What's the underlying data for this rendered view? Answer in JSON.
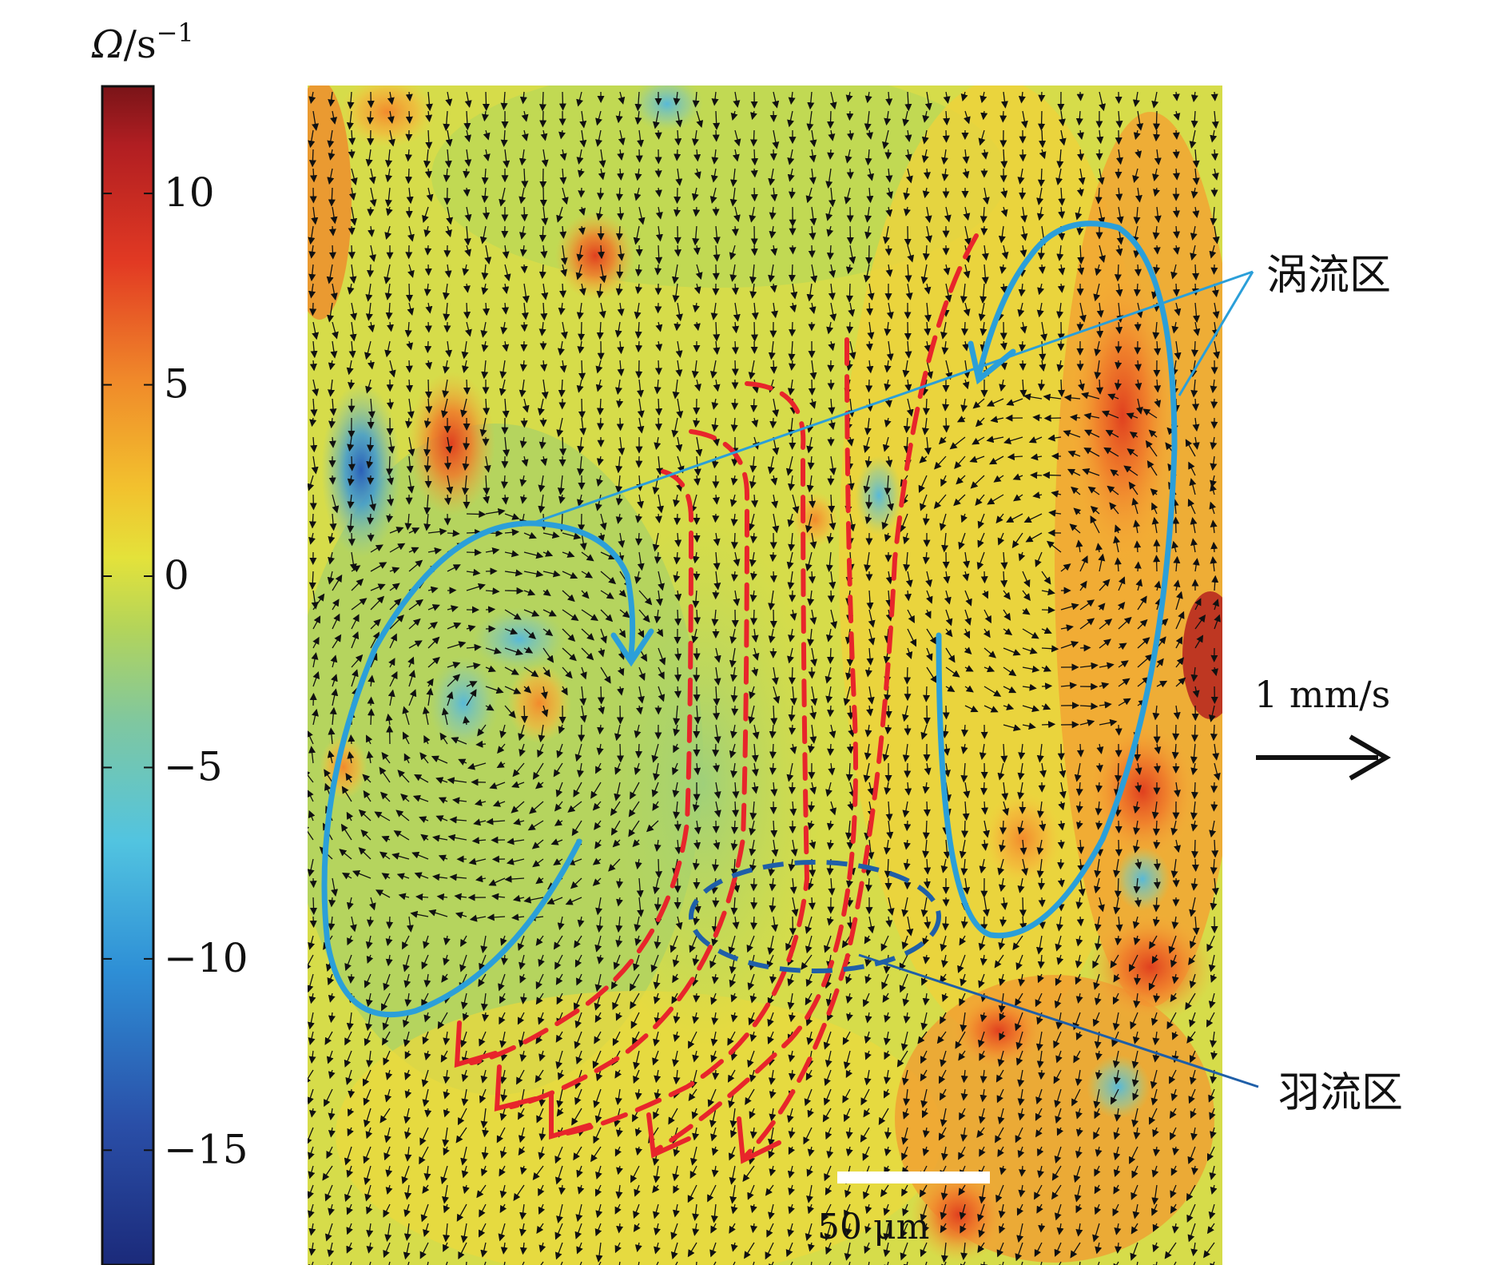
{
  "chart_data": {
    "type": "heatmap",
    "title": "",
    "colorbar": {
      "label_symbol": "Ω",
      "label_unit": "/s",
      "label_exp": "−1",
      "range": [
        -18,
        12.8
      ],
      "ticks": [
        10,
        5,
        0,
        -5,
        -10,
        -15
      ],
      "tick_labels": [
        "10",
        "5",
        "0",
        "−5",
        "−10",
        "−15"
      ],
      "colormap": "jet"
    },
    "field": {
      "description_type": "vorticity field with velocity vectors",
      "hot_spots": [
        {
          "omega": 9
        },
        {
          "omega": 8
        },
        {
          "omega": -14
        },
        {
          "omega": -7
        }
      ]
    },
    "annotations": {
      "vortex_label": "涡流区",
      "plume_label": "羽流区",
      "velocity_ref_label": "1 mm/s",
      "scale_bar_label": "50 μm"
    },
    "grid": false
  },
  "colors": {
    "vortex_curve": "#2b9fd9",
    "plume_curve": "#e8252b",
    "plume_region": "#1f5fa8",
    "leader_line_vortex": "#2b9fd9",
    "leader_line_plume": "#1f5fa8",
    "vector": "#111111"
  },
  "icons": {
    "velocity_reference": "right-arrow-icon"
  }
}
